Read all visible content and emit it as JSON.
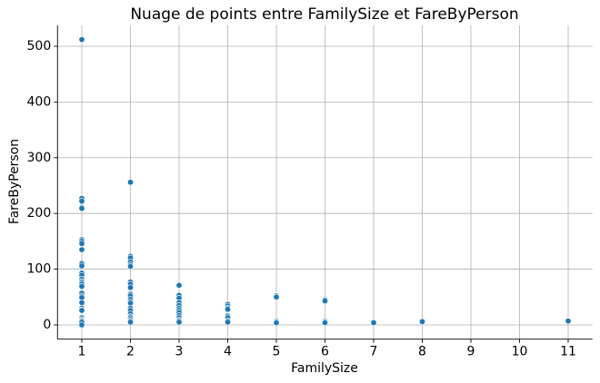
{
  "chart_data": {
    "type": "scatter",
    "title": "Nuage de points entre FamilySize et FareByPerson",
    "x_label": "FamilySize",
    "y_label": "FareByPerson",
    "color": "#1f77b4",
    "grid": true,
    "xlim": [
      0.5,
      11.5
    ],
    "ylim": [
      -25.6,
      537.9
    ],
    "xticks": [
      1,
      2,
      3,
      4,
      5,
      6,
      7,
      8,
      9,
      10,
      11
    ],
    "yticks": [
      0,
      100,
      200,
      300,
      400,
      500
    ],
    "x": [
      1,
      1,
      1,
      1,
      1,
      1,
      1,
      1,
      1,
      1,
      1,
      1,
      1,
      1,
      1,
      1,
      1,
      1,
      1,
      1,
      1,
      1,
      1,
      1,
      1,
      1,
      1,
      1,
      1,
      1,
      1,
      2,
      2,
      2,
      2,
      2,
      2,
      2,
      2,
      2,
      2,
      2,
      2,
      2,
      2,
      2,
      2,
      2,
      2,
      2,
      2,
      2,
      2,
      3,
      3,
      3,
      3,
      3,
      3,
      3,
      3,
      3,
      3,
      3,
      3,
      3,
      4,
      4,
      4,
      4,
      4,
      4,
      4,
      4,
      5,
      5,
      5,
      5,
      5,
      6,
      6,
      6,
      6,
      6,
      7,
      8,
      11
    ],
    "values": [
      512,
      227,
      222,
      211,
      209,
      153,
      150,
      146,
      135,
      110,
      106,
      93,
      89,
      82,
      78,
      76,
      73,
      69,
      57,
      52,
      49,
      40,
      30,
      27,
      26,
      13,
      10,
      8,
      7,
      5,
      0,
      256,
      123,
      120,
      113,
      108,
      105,
      77,
      73,
      67,
      55,
      52,
      46,
      42,
      39,
      30,
      26,
      20,
      15,
      13,
      10,
      7,
      5,
      71,
      53,
      48,
      40,
      35,
      30,
      26,
      22,
      17,
      13,
      9,
      7,
      5,
      37,
      34,
      30,
      28,
      16,
      13,
      7,
      5,
      52,
      50,
      7,
      5,
      4,
      45,
      43,
      7,
      5,
      4,
      4,
      6,
      7
    ]
  }
}
